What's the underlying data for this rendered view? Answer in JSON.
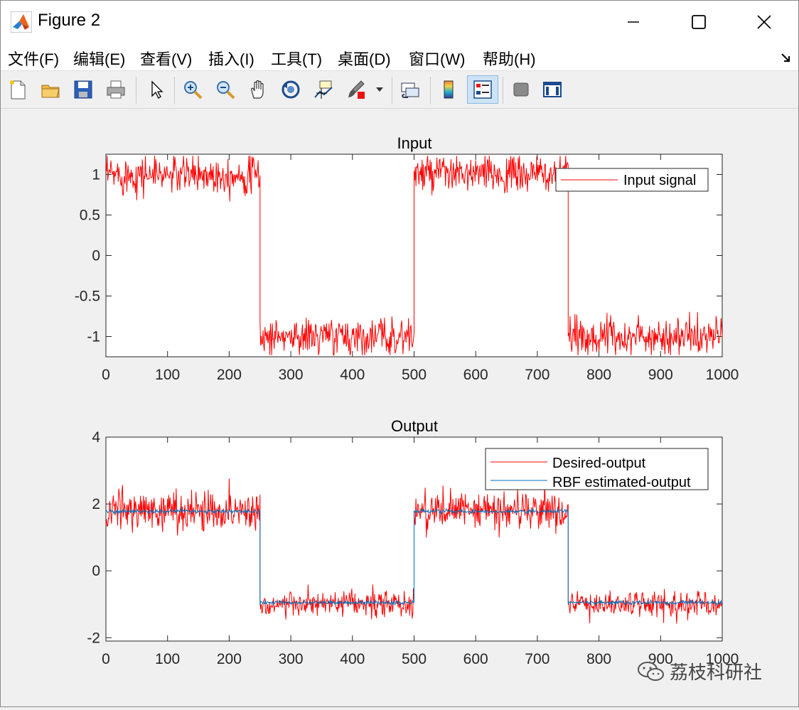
{
  "window": {
    "title": "Figure 2"
  },
  "menu": {
    "items": [
      {
        "label": "文件(F)"
      },
      {
        "label": "编辑(E)"
      },
      {
        "label": "查看(V)"
      },
      {
        "label": "插入(I)"
      },
      {
        "label": "工具(T)"
      },
      {
        "label": "桌面(D)"
      },
      {
        "label": "窗口(W)"
      },
      {
        "label": "帮助(H)"
      }
    ]
  },
  "toolbar": {
    "icons": [
      "new-file-icon",
      "open-folder-icon",
      "save-icon",
      "print-icon",
      "pointer-icon",
      "zoom-in-icon",
      "zoom-out-icon",
      "pan-hand-icon",
      "rotate-3d-icon",
      "data-cursor-icon",
      "brush-icon",
      "brush-dropdown-icon",
      "link-plot-icon",
      "colorbar-icon",
      "legend-icon",
      "hide-plot-tools-icon",
      "show-plot-tools-icon"
    ]
  },
  "colors": {
    "desired": "#ff0000",
    "rbf": "#0072bd",
    "axes_bg": "#ffffff",
    "figure_bg": "#f0f0f0"
  },
  "chart_data": [
    {
      "type": "line",
      "title": "Input",
      "xlabel": "",
      "ylabel": "",
      "xlim": [
        0,
        1000
      ],
      "ylim": [
        -1.25,
        1.25
      ],
      "xticks": [
        "0",
        "100",
        "200",
        "300",
        "400",
        "500",
        "600",
        "700",
        "800",
        "900",
        "1000"
      ],
      "yticks": [
        "1",
        "0.5",
        "0",
        "-0.5",
        "-1"
      ],
      "grid": false,
      "legend_placement": "top-right",
      "series": [
        {
          "name": "Input signal",
          "color": "#ff0000",
          "description": "square wave with noise",
          "segments": [
            {
              "x": [
                0,
                250
              ],
              "level": 1,
              "noise": 0.12
            },
            {
              "x": [
                250,
                500
              ],
              "level": -1,
              "noise": 0.12
            },
            {
              "x": [
                500,
                750
              ],
              "level": 1,
              "noise": 0.12
            },
            {
              "x": [
                750,
                1000
              ],
              "level": -1,
              "noise": 0.12
            }
          ]
        }
      ]
    },
    {
      "type": "line",
      "title": "Output",
      "xlabel": "",
      "ylabel": "",
      "xlim": [
        0,
        1000
      ],
      "ylim": [
        -2.1,
        4
      ],
      "xticks": [
        "0",
        "100",
        "200",
        "300",
        "400",
        "500",
        "600",
        "700",
        "800",
        "900",
        "1000"
      ],
      "yticks": [
        "4",
        "2",
        "0",
        "-2"
      ],
      "grid": false,
      "legend_placement": "top-right",
      "series": [
        {
          "name": "Desired-output",
          "color": "#ff0000",
          "segments": [
            {
              "x": [
                0,
                250
              ],
              "level": 1.8,
              "noise": 0.3
            },
            {
              "x": [
                250,
                500
              ],
              "level": -1.0,
              "noise": 0.2
            },
            {
              "x": [
                500,
                750
              ],
              "level": 1.8,
              "noise": 0.3
            },
            {
              "x": [
                750,
                1000
              ],
              "level": -1.0,
              "noise": 0.2
            }
          ]
        },
        {
          "name": "RBF estimated-output",
          "color": "#0072bd",
          "segments": [
            {
              "x": [
                0,
                250
              ],
              "level": 1.78,
              "noise": 0.03
            },
            {
              "x": [
                250,
                500
              ],
              "level": -0.95,
              "noise": 0.03
            },
            {
              "x": [
                500,
                750
              ],
              "level": 1.78,
              "noise": 0.03
            },
            {
              "x": [
                750,
                1000
              ],
              "level": -0.95,
              "noise": 0.03
            }
          ]
        }
      ]
    }
  ],
  "watermark": {
    "text": "荔枝科研社"
  }
}
